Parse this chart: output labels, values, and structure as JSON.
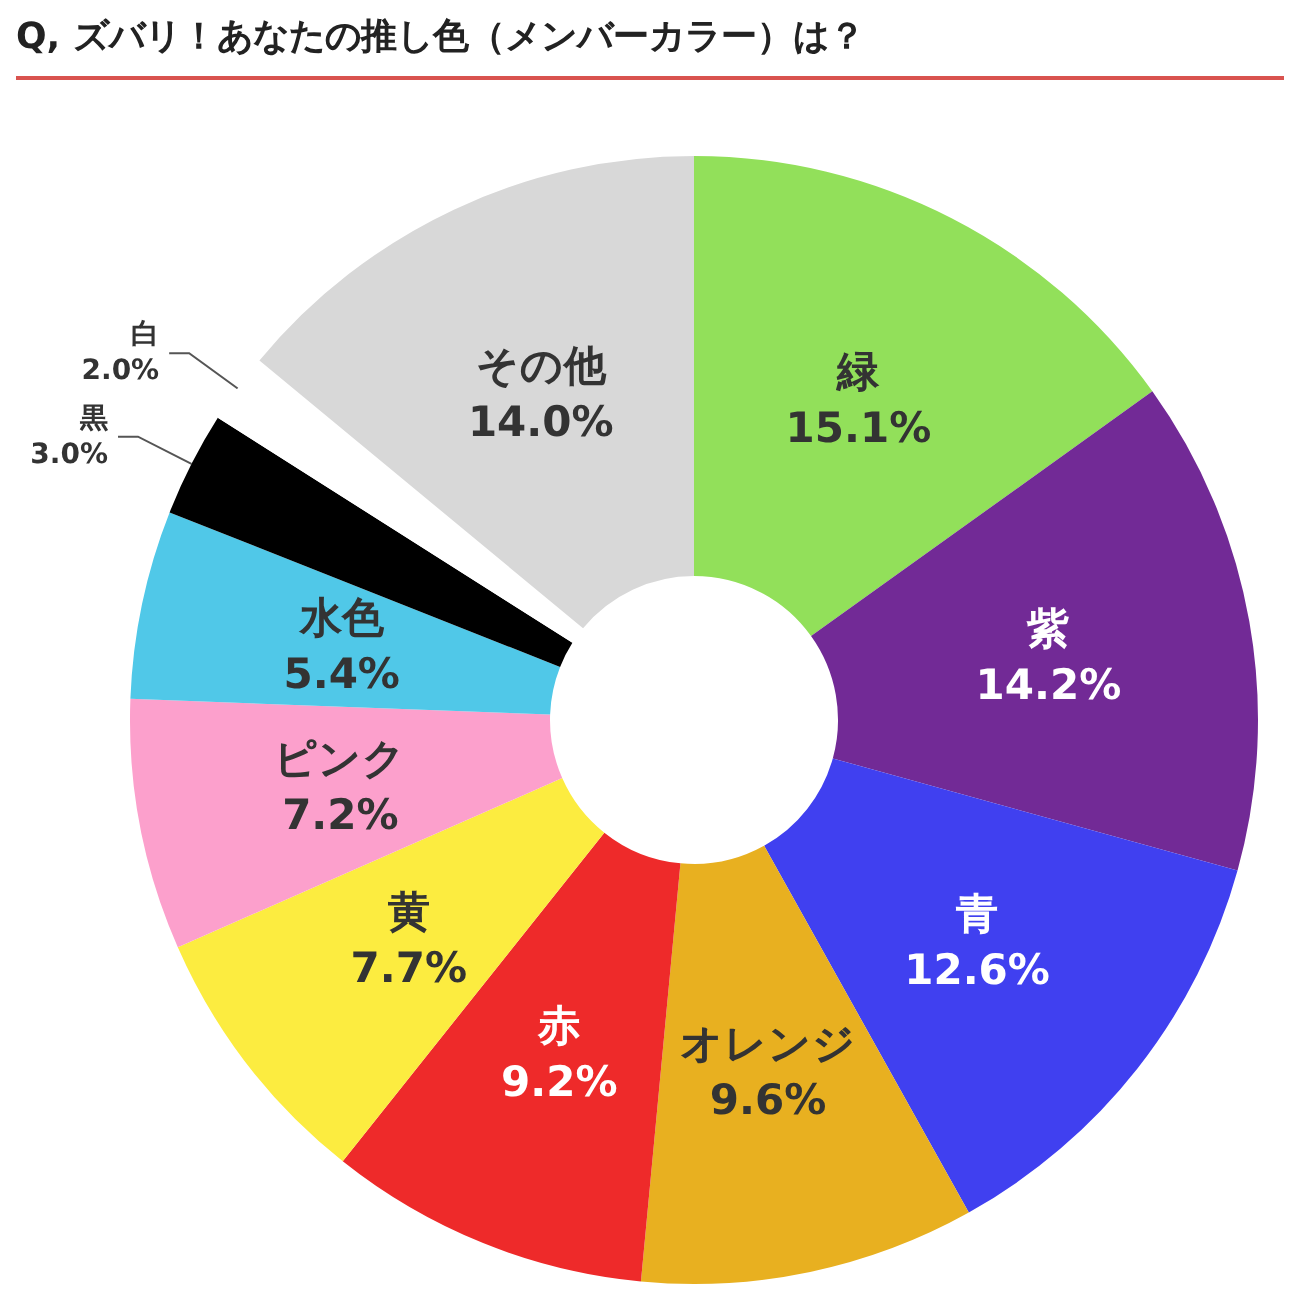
{
  "chart_data": {
    "type": "donut",
    "title": "Q, ズバリ！あなたの推し色（メンバーカラー）は？",
    "categories": [
      "緑",
      "紫",
      "青",
      "オレンジ",
      "赤",
      "黄",
      "ピンク",
      "水色",
      "黒",
      "白",
      "その他"
    ],
    "values": [
      15.1,
      14.2,
      12.6,
      9.6,
      9.2,
      7.7,
      7.2,
      5.4,
      3.0,
      2.0,
      14.0
    ],
    "colors": [
      "#92e05a",
      "#722a96",
      "#4040f0",
      "#e8b020",
      "#ee2a2a",
      "#fcec40",
      "#fca0cc",
      "#50c8e8",
      "#000000",
      "#ffffff",
      "#d8d8d8"
    ],
    "value_labels": [
      "15.1%",
      "14.2%",
      "12.6%",
      "9.6%",
      "9.2%",
      "7.7%",
      "7.2%",
      "5.4%",
      "3.0%",
      "2.0%",
      "14.0%"
    ],
    "legend": false
  }
}
